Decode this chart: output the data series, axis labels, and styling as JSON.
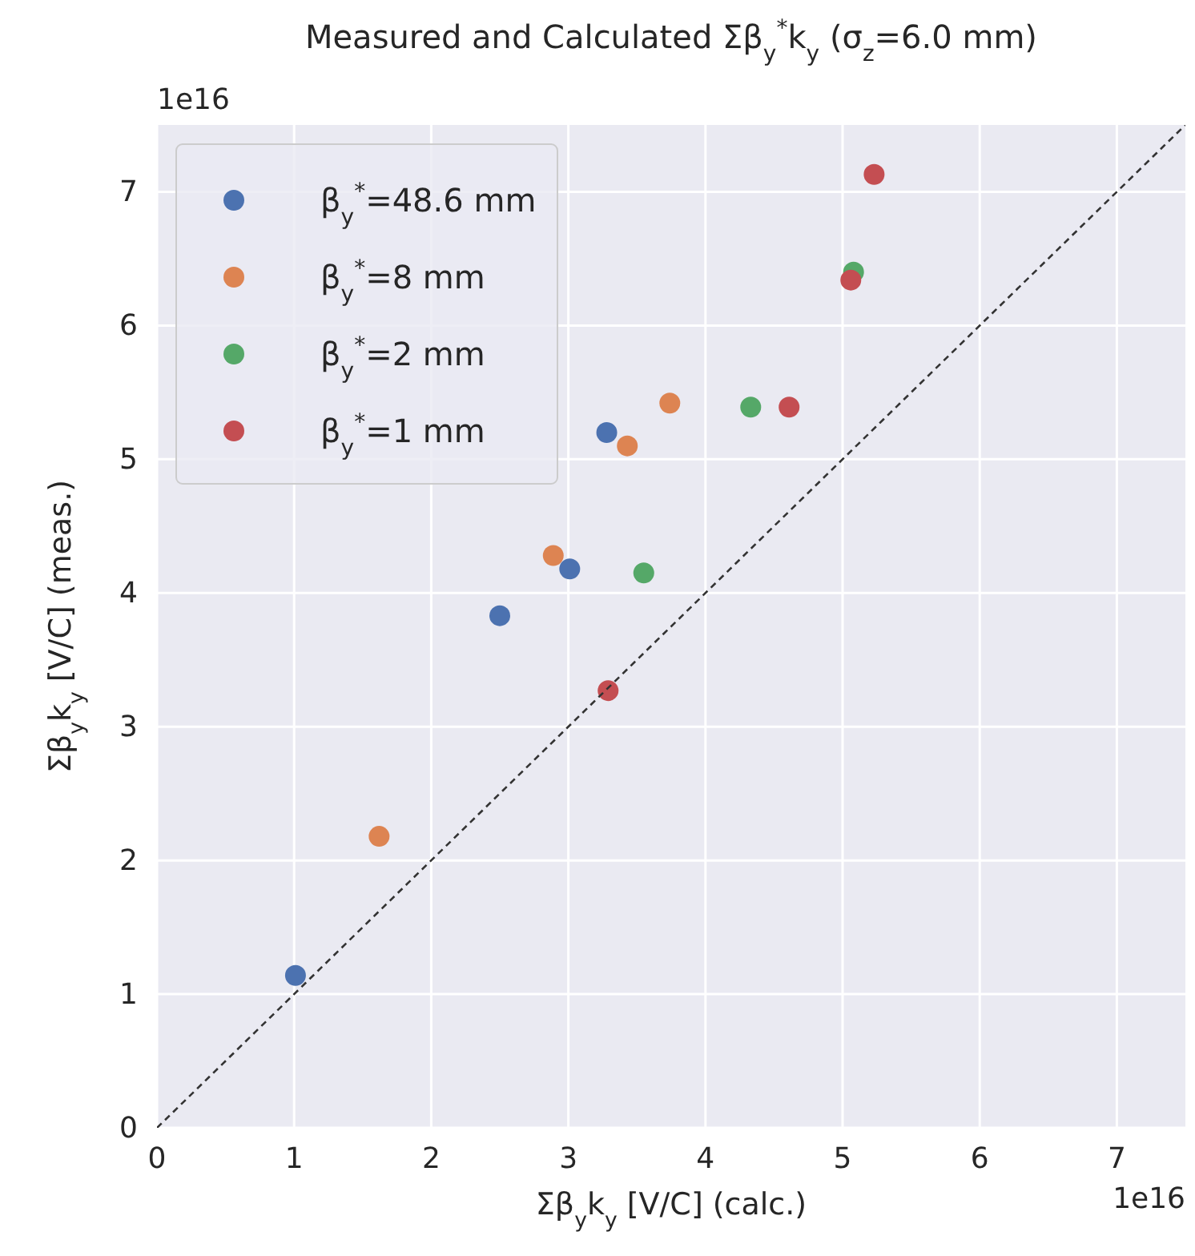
{
  "chart_data": {
    "type": "scatter",
    "title": "Measured and Calculated Σβ$_{y}$$^{*}$k$_{y}$ (σ$_{z}$=6.0 mm)",
    "xlabel": "Σβ$_{y}$k$_{y}$ [V/C] (calc.)",
    "ylabel": "Σβ$_{y}$k$_{y}$ [V/C] (meas.)",
    "annotations": [
      "1e16",
      "1e16"
    ],
    "xlim": [
      0,
      7.5
    ],
    "ylim": [
      0,
      7.5
    ],
    "xticks": [
      0,
      1,
      2,
      3,
      4,
      5,
      6,
      7
    ],
    "yticks": [
      0,
      1,
      2,
      3,
      4,
      5,
      6,
      7
    ],
    "grid": true,
    "legend": "top left",
    "marker": "circle",
    "series": [
      {
        "name": "β$_{y}$$^{*}$=48.6 mm",
        "color": "#4c72b0",
        "x": [
          1.01,
          2.5,
          3.01,
          3.28
        ],
        "values": [
          1.14,
          3.83,
          4.18,
          5.2
        ]
      },
      {
        "name": "β$_{y}$$^{*}$=8 mm",
        "color": "#dd8452",
        "x": [
          1.62,
          2.89,
          3.43,
          3.74
        ],
        "values": [
          2.18,
          4.28,
          5.1,
          5.42
        ]
      },
      {
        "name": "β$_{y}$$^{*}$=2 mm",
        "color": "#55a868",
        "x": [
          3.55,
          4.33,
          5.08
        ],
        "values": [
          4.15,
          5.39,
          6.4
        ]
      },
      {
        "name": "β$_{y}$$^{*}$=1 mm",
        "color": "#c44e52",
        "x": [
          3.29,
          4.61,
          5.06,
          5.23
        ],
        "values": [
          3.27,
          5.39,
          6.34,
          7.13
        ]
      },
      {
        "type": "line",
        "color": "#333333",
        "line_style": "dashed",
        "marker": "none",
        "x": [
          0,
          7.5
        ],
        "values": [
          0,
          7.5
        ]
      }
    ]
  }
}
